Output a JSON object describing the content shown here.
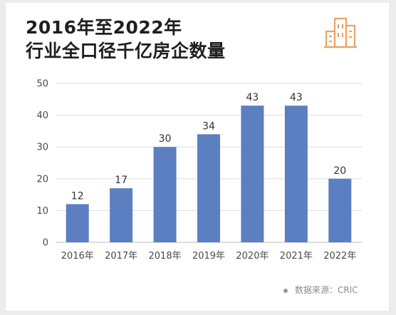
{
  "title_line1": "2016年至2022年",
  "title_line2": "行业全口径千亿房企数量",
  "source": "数据来源：CRIC",
  "icons": {
    "logo": "buildings-icon"
  },
  "colors": {
    "bar": "#5b7fc0",
    "logo": "#e8a466",
    "grid": "#dddddd",
    "title": "#1f1f1f"
  },
  "chart_data": {
    "type": "bar",
    "title": "2016年至2022年 行业全口径千亿房企数量",
    "xlabel": "",
    "ylabel": "",
    "categories": [
      "2016年",
      "2017年",
      "2018年",
      "2019年",
      "2020年",
      "2021年",
      "2022年"
    ],
    "values": [
      12,
      17,
      30,
      34,
      43,
      43,
      20
    ],
    "ylim": [
      0,
      50
    ],
    "yticks": [
      0,
      10,
      20,
      30,
      40,
      50
    ],
    "grid": true,
    "data_labels": true
  }
}
